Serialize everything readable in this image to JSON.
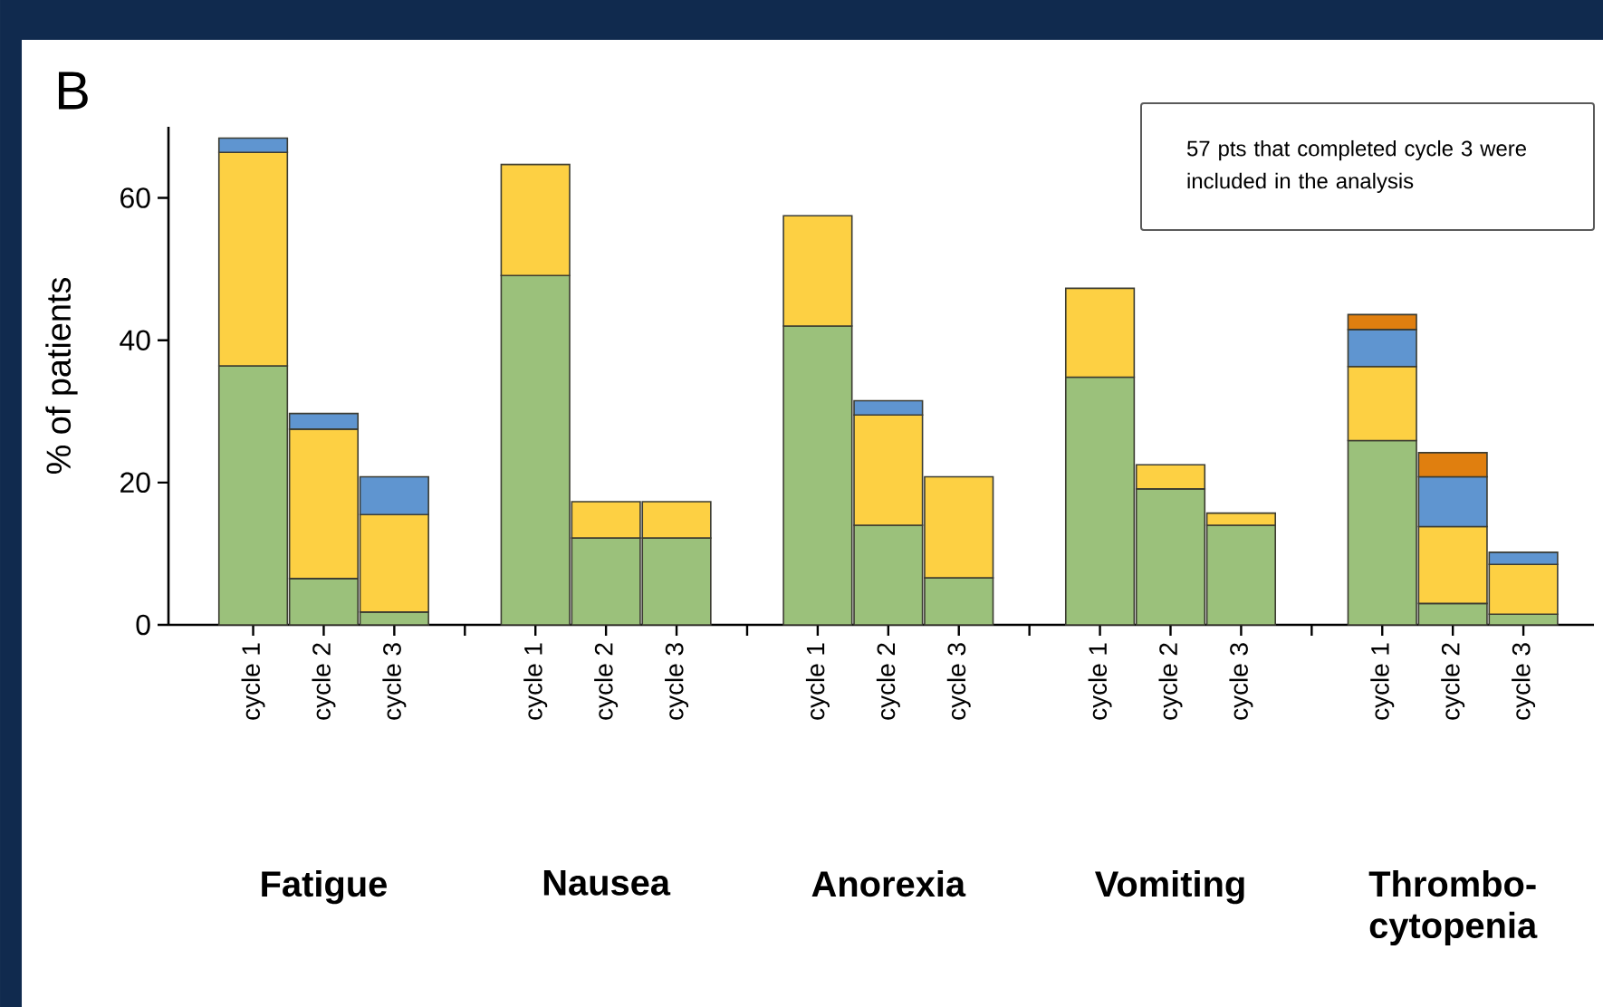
{
  "chart_data": {
    "type": "bar",
    "stacked": true,
    "title": "B",
    "ylabel": "% of patients",
    "categories": [
      "cycle 1",
      "cycle 2",
      "cycle 3",
      "cycle 1",
      "cycle 2",
      "cycle 3",
      "cycle 1",
      "cycle 2",
      "cycle 3",
      "cycle 1",
      "cycle 2",
      "cycle 3",
      "cycle 1",
      "cycle 2",
      "cycle 3"
    ],
    "series": [
      {
        "color": "#9bc17b",
        "values": [
          36.4,
          6.5,
          1.8,
          49.1,
          12.2,
          12.2,
          42,
          14,
          6.6,
          34.8,
          19.1,
          14,
          25.9,
          3,
          1.5
        ]
      },
      {
        "color": "#fdd043",
        "values": [
          30,
          21,
          13.7,
          15.6,
          5.1,
          5.1,
          15.5,
          15.5,
          14.2,
          12.5,
          3.4,
          1.7,
          10.4,
          10.8,
          7
        ]
      },
      {
        "color": "#5f95d0",
        "values": [
          2,
          2.2,
          5.3,
          null,
          null,
          null,
          null,
          2,
          null,
          null,
          null,
          null,
          5.2,
          7,
          1.7
        ]
      },
      {
        "color": "#e07f0f",
        "values": [
          null,
          null,
          null,
          null,
          null,
          null,
          null,
          null,
          null,
          null,
          null,
          null,
          2.1,
          3.4,
          null
        ]
      }
    ],
    "ylim": [
      0,
      70
    ],
    "yticks": [
      0,
      20,
      40,
      60
    ],
    "grid": false,
    "annotations": [
      "57 pts that completed cycle 3 were included in the analysis",
      "Fatigue",
      "Nausea",
      "Anorexia",
      "Vomiting",
      "Thrombo- cytopenia"
    ]
  }
}
